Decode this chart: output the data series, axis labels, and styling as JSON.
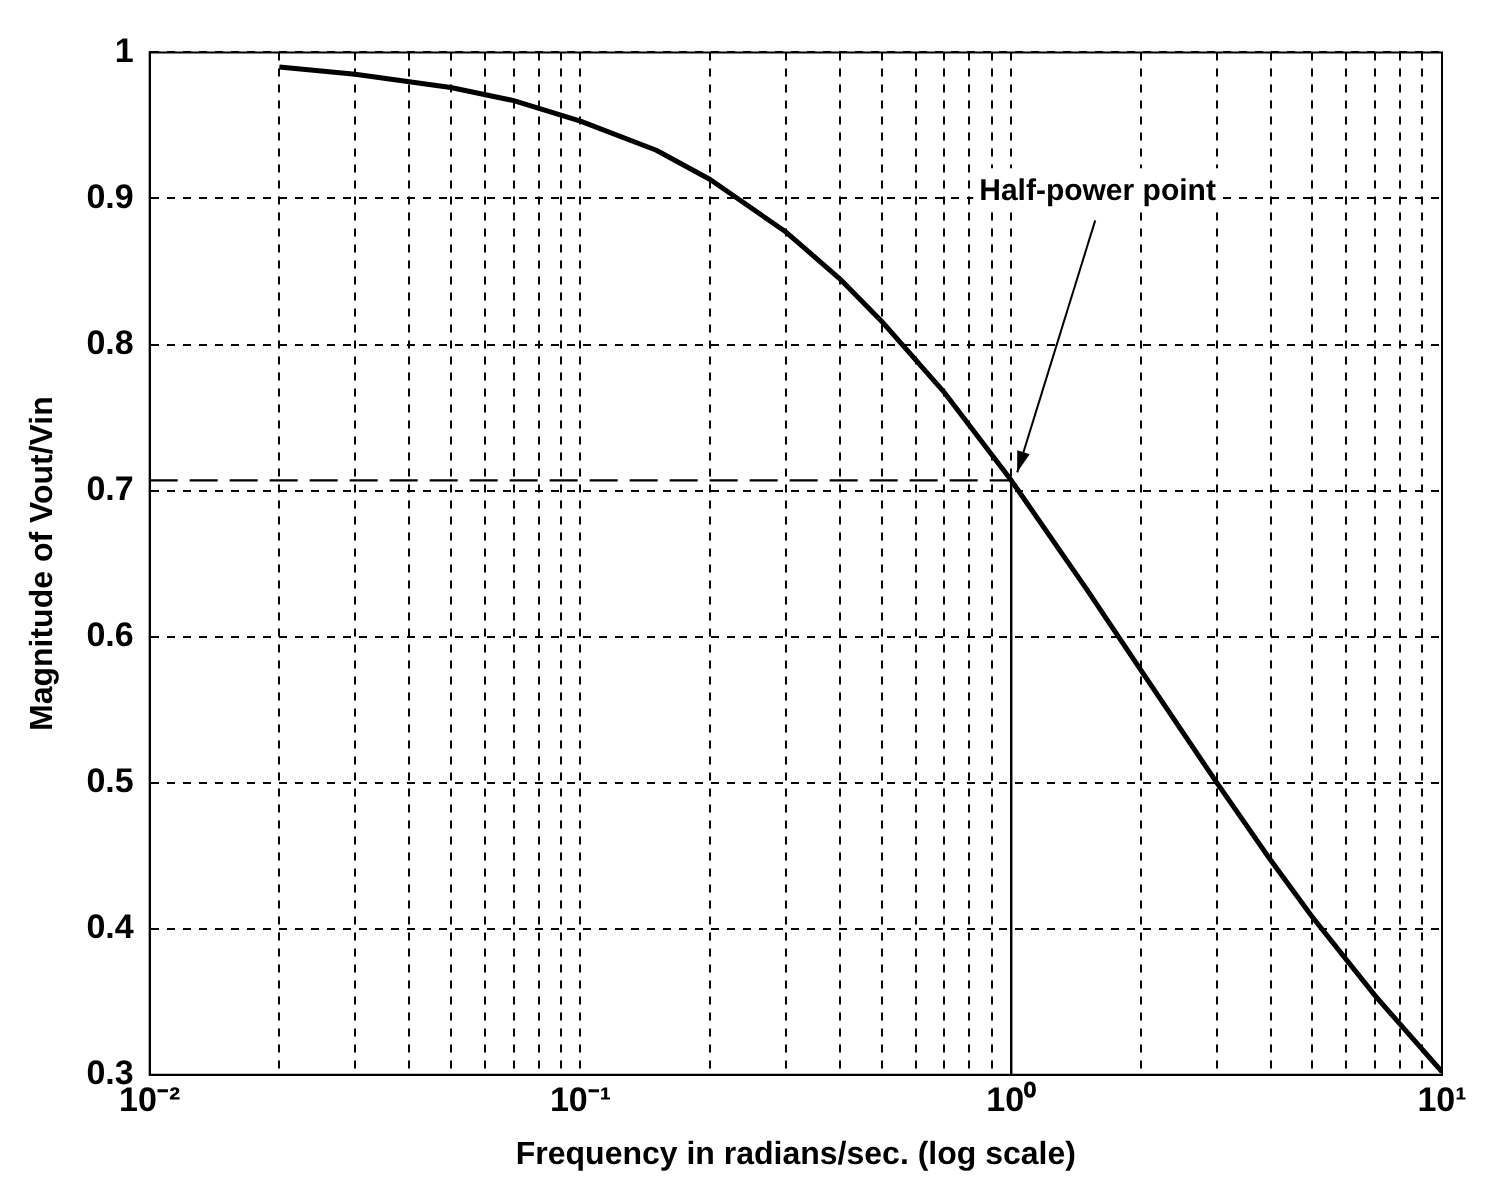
{
  "chart_data": {
    "type": "line",
    "xlabel": "Frequency in radians/sec. (log scale)",
    "ylabel": "Magnitude of Vout/Vin",
    "log": "x",
    "x": [
      0.02,
      0.03,
      0.05,
      0.07,
      0.1,
      0.15,
      0.2,
      0.3,
      0.4,
      0.5,
      0.7,
      1,
      1.5,
      2,
      3,
      4,
      5,
      7,
      10
    ],
    "series": [
      {
        "color": "#000000",
        "values": [
          0.99,
          0.985,
          0.976,
          0.967,
          0.953,
          0.933,
          0.913,
          0.877,
          0.845,
          0.816,
          0.767,
          0.707,
          0.632,
          0.577,
          0.5,
          0.447,
          0.408,
          0.354,
          0.302
        ]
      }
    ],
    "xlim": [
      0.01,
      10
    ],
    "xticks": [
      {
        "value": 0.01,
        "label": "10⁻²"
      },
      {
        "value": 0.02,
        "label": null
      },
      {
        "value": 0.03,
        "label": null
      },
      {
        "value": 0.04,
        "label": null
      },
      {
        "value": 0.05,
        "label": null
      },
      {
        "value": 0.06,
        "label": null
      },
      {
        "value": 0.07,
        "label": null
      },
      {
        "value": 0.08,
        "label": null
      },
      {
        "value": 0.09,
        "label": null
      },
      {
        "value": 0.1,
        "label": "10⁻¹"
      },
      {
        "value": 0.2,
        "label": null
      },
      {
        "value": 0.3,
        "label": null
      },
      {
        "value": 0.4,
        "label": null
      },
      {
        "value": 0.5,
        "label": null
      },
      {
        "value": 0.6,
        "label": null
      },
      {
        "value": 0.7,
        "label": null
      },
      {
        "value": 0.8,
        "label": null
      },
      {
        "value": 0.9,
        "label": null
      },
      {
        "value": 1,
        "label": "10⁰"
      },
      {
        "value": 2,
        "label": null
      },
      {
        "value": 3,
        "label": null
      },
      {
        "value": 4,
        "label": null
      },
      {
        "value": 5,
        "label": null
      },
      {
        "value": 6,
        "label": null
      },
      {
        "value": 7,
        "label": null
      },
      {
        "value": 8,
        "label": null
      },
      {
        "value": 9,
        "label": null
      },
      {
        "value": 10,
        "label": "10¹"
      }
    ],
    "ylim": [
      0.3,
      1
    ],
    "yticks": [
      0.3,
      0.4,
      0.5,
      0.6,
      0.7,
      0.8,
      0.9,
      1
    ],
    "grid": true,
    "marker": "none",
    "line_style": "solid",
    "ref_lines": [
      {
        "axis": "y",
        "value": 0.707,
        "line_style": "dashed",
        "color": "#000000"
      },
      {
        "axis": "x",
        "value": 1,
        "line_style": "solid",
        "color": "#000000"
      }
    ],
    "annotations": [
      {
        "text": "Half-power point",
        "x": 1,
        "y": 0.707
      }
    ]
  }
}
